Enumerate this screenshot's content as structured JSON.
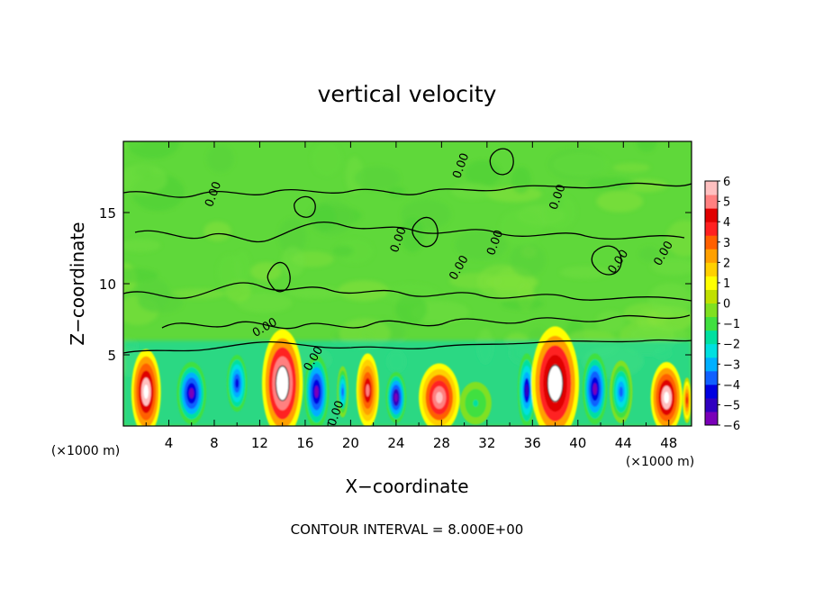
{
  "chart_data": {
    "type": "heatmap",
    "title": "vertical velocity",
    "xlabel": "X−coordinate",
    "ylabel": "Z−coordinate",
    "x_unit_left": "(×1000 m)",
    "x_unit_right": "(×1000 m)",
    "footer": "CONTOUR INTERVAL = 8.000E+00",
    "xlim": [
      0,
      50
    ],
    "ylim": [
      0,
      20
    ],
    "x_ticks": [
      4,
      8,
      12,
      16,
      20,
      24,
      28,
      32,
      36,
      40,
      44,
      48
    ],
    "x_tick_labels": [
      "4",
      "8",
      "12",
      "16",
      "20",
      "24",
      "28",
      "32",
      "36",
      "40",
      "44",
      "48"
    ],
    "y_ticks": [
      5,
      10,
      15
    ],
    "y_tick_labels": [
      "5",
      "10",
      "15"
    ],
    "contour_label": "0.00",
    "colorbar": {
      "min": -6,
      "max": 6,
      "ticks": [
        6,
        5,
        4,
        3,
        2,
        1,
        0,
        -1,
        -2,
        -3,
        -4,
        -5,
        -6
      ],
      "tick_labels": [
        "6",
        "5",
        "4",
        "3",
        "2",
        "1",
        "0",
        "−1",
        "−2",
        "−3",
        "−4",
        "−5",
        "−6"
      ],
      "colors": [
        "#7a00b8",
        "#3000c0",
        "#0000e0",
        "#1060ff",
        "#00b0ff",
        "#00e0e0",
        "#00e0a0",
        "#40e040",
        "#80e020",
        "#c0e000",
        "#ffff00",
        "#ffd000",
        "#ffa000",
        "#ff6000",
        "#ff2020",
        "#e00000",
        "#ff8080",
        "#ffc0c0"
      ]
    },
    "cells": [
      {
        "x": 2,
        "z": 2.4,
        "rx": 1.3,
        "rz": 3.0,
        "value": 6.5
      },
      {
        "x": 6,
        "z": 2.3,
        "rx": 1.3,
        "rz": 2.2,
        "value": -5.5
      },
      {
        "x": 10,
        "z": 3.0,
        "rx": 0.9,
        "rz": 2.0,
        "value": -4.5
      },
      {
        "x": 14,
        "z": 3.0,
        "rx": 1.8,
        "rz": 3.8,
        "value": 7.5
      },
      {
        "x": 17,
        "z": 2.4,
        "rx": 1.1,
        "rz": 2.6,
        "value": -5.5
      },
      {
        "x": 19.3,
        "z": 2.4,
        "rx": 0.5,
        "rz": 1.8,
        "value": -4.0
      },
      {
        "x": 21.5,
        "z": 2.5,
        "rx": 1.0,
        "rz": 2.6,
        "value": 5.0
      },
      {
        "x": 24,
        "z": 2.0,
        "rx": 0.9,
        "rz": 1.8,
        "value": -6.0
      },
      {
        "x": 27.8,
        "z": 2.0,
        "rx": 1.8,
        "rz": 2.4,
        "value": 6.0
      },
      {
        "x": 31,
        "z": 1.6,
        "rx": 1.4,
        "rz": 1.5,
        "value": -1.5
      },
      {
        "x": 35.5,
        "z": 2.5,
        "rx": 0.8,
        "rz": 2.6,
        "value": -5.0
      },
      {
        "x": 38,
        "z": 3.0,
        "rx": 2.1,
        "rz": 4.0,
        "value": 7.0
      },
      {
        "x": 41.5,
        "z": 2.6,
        "rx": 1.1,
        "rz": 2.5,
        "value": -5.5
      },
      {
        "x": 43.8,
        "z": 2.4,
        "rx": 1.0,
        "rz": 2.2,
        "value": -3.5
      },
      {
        "x": 47.8,
        "z": 2.0,
        "rx": 1.4,
        "rz": 2.5,
        "value": 6.5
      },
      {
        "x": 49.6,
        "z": 1.8,
        "rx": 0.4,
        "rz": 1.6,
        "value": 4.0
      }
    ]
  }
}
